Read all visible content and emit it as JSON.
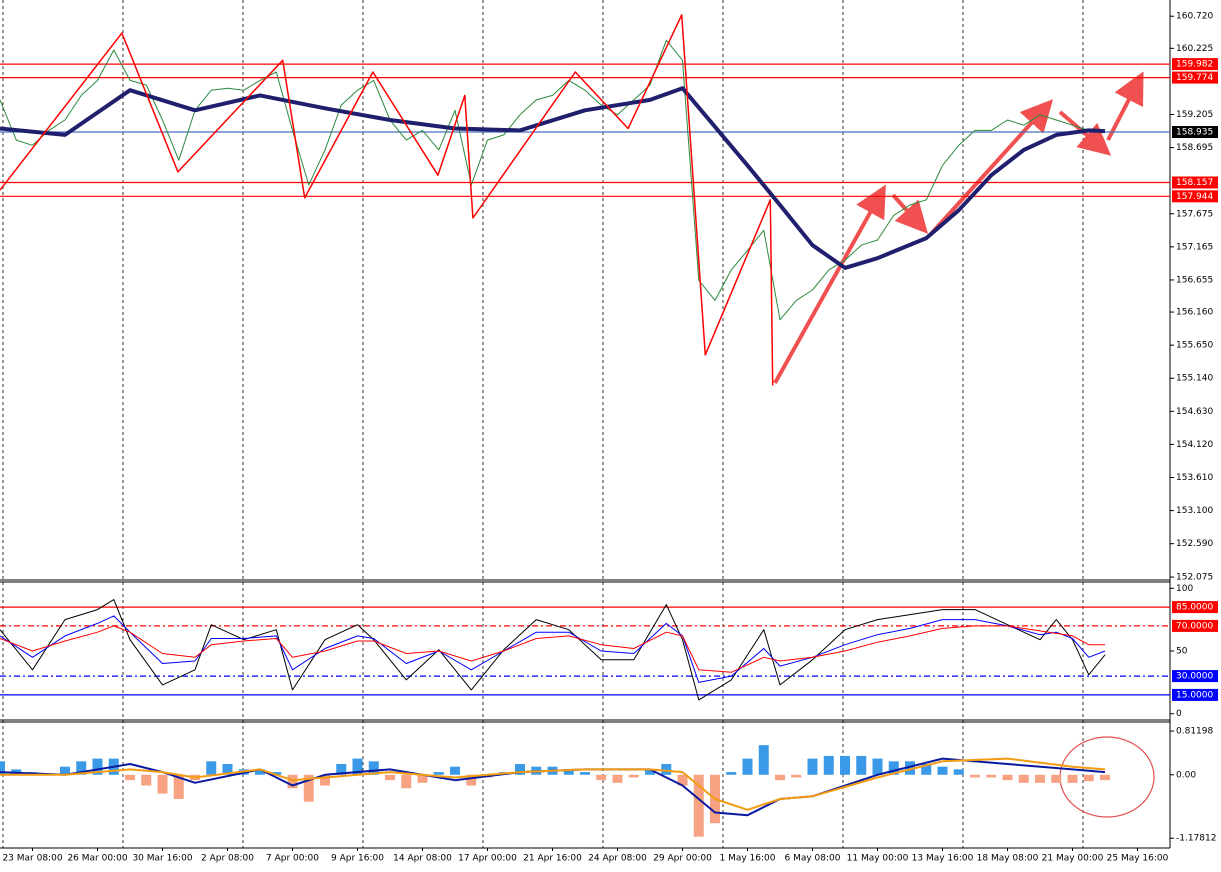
{
  "chart_data": [
    {
      "type": "line",
      "xlim": [
        0,
        144
      ],
      "ylim": [
        152.03,
        160.97
      ],
      "yticks": [
        {
          "value": 160.72,
          "label": "160.720"
        },
        160.225,
        159.205,
        158.695,
        157.675,
        157.165,
        156.655,
        {
          "value": 156.16,
          "label": "156.160"
        },
        {
          "value": 155.65,
          "label": "155.650"
        },
        {
          "value": 155.14,
          "label": "155.140"
        },
        {
          "value": 154.63,
          "label": "154.630"
        },
        {
          "value": 154.12,
          "label": "154.120"
        },
        {
          "value": 153.61,
          "label": "153.610"
        },
        {
          "value": 153.1,
          "label": "153.100"
        },
        {
          "value": 152.59,
          "label": "152.590"
        },
        152.075
      ],
      "levels": [
        {
          "value": 159.982,
          "color": "#ff0000"
        },
        {
          "value": 159.774,
          "color": "#ff0000"
        },
        {
          "value": 158.157,
          "color": "#ff0000"
        },
        {
          "value": 157.944,
          "color": "#ff0000"
        },
        {
          "value": 158.935,
          "color": "#000000",
          "line_color": "#4a6fc0"
        }
      ],
      "series": [
        {
          "color": "#2b8a3e",
          "width": 1,
          "x": [
            0,
            2,
            4,
            6,
            8,
            10,
            12,
            14,
            16,
            18,
            20,
            22,
            24,
            26,
            28,
            30,
            32,
            34,
            36,
            38,
            40,
            42,
            44,
            46,
            48,
            50,
            52,
            54,
            56,
            58,
            60,
            62,
            64,
            66,
            68,
            70,
            72,
            74,
            76,
            78,
            80,
            82,
            84,
            86,
            88,
            90,
            92,
            94,
            96,
            98,
            100,
            102,
            104,
            106,
            108,
            110,
            112,
            114,
            116,
            118,
            120,
            122,
            124,
            126,
            128,
            130,
            132,
            134,
            136
          ],
          "values": [
            159.43,
            158.81,
            158.73,
            158.96,
            159.12,
            159.5,
            159.73,
            160.2,
            159.73,
            159.66,
            159.12,
            158.5,
            159.27,
            159.58,
            159.61,
            159.58,
            159.73,
            159.86,
            158.96,
            158.12,
            158.66,
            159.35,
            159.58,
            159.73,
            159.12,
            158.81,
            158.96,
            158.66,
            159.27,
            158.12,
            158.81,
            158.89,
            159.2,
            159.43,
            159.5,
            159.73,
            159.58,
            159.35,
            159.2,
            159.43,
            159.66,
            160.35,
            160.04,
            156.65,
            156.34,
            156.81,
            157.11,
            157.42,
            156.04,
            156.34,
            156.5,
            156.81,
            156.96,
            157.19,
            157.27,
            157.65,
            157.81,
            157.89,
            158.42,
            158.73,
            158.96,
            158.96,
            159.12,
            159.04,
            159.2,
            159.12,
            159.04,
            158.96,
            158.95
          ]
        },
        {
          "color": "#1f1f6e",
          "width": 4,
          "x": [
            0,
            8,
            16,
            24,
            32,
            40,
            48,
            56,
            64,
            72,
            80,
            84,
            92,
            96,
            100,
            104,
            108,
            114,
            118,
            122,
            126,
            130,
            134,
            136
          ],
          "values": [
            158.99,
            158.89,
            159.58,
            159.27,
            159.5,
            159.3,
            159.12,
            158.99,
            158.96,
            159.27,
            159.43,
            159.61,
            158.42,
            157.81,
            157.19,
            156.84,
            156.99,
            157.3,
            157.73,
            158.27,
            158.66,
            158.89,
            158.96,
            158.95
          ]
        },
        {
          "color": "#ff0000",
          "width": 1.5,
          "x": [
            0,
            15,
            21.9,
            34.8,
            37.5,
            45.9,
            53.9,
            57.2,
            58.2,
            70.8,
            77.3,
            83.9,
            86.8,
            94.8,
            95.1
          ],
          "values": [
            158.04,
            160.46,
            158.32,
            160.04,
            157.92,
            159.86,
            158.27,
            159.5,
            157.61,
            159.86,
            158.99,
            160.74,
            155.5,
            157.89,
            155.03
          ]
        }
      ]
    },
    {
      "type": "line",
      "xlim": [
        0,
        144
      ],
      "ylim": [
        -5,
        105
      ],
      "yticks": [
        100,
        50,
        0
      ],
      "levels": [
        {
          "value": 85,
          "label": "85.0000",
          "color": "#ff0000",
          "dash": "none"
        },
        {
          "value": 70,
          "label": "70.0000",
          "color": "#ff0000",
          "dash": "6 3 2 3"
        },
        {
          "value": 30,
          "label": "30.0000",
          "color": "#0000ff",
          "dash": "6 3 2 3"
        },
        {
          "value": 15,
          "label": "15.0000",
          "color": "#0000ff",
          "dash": "none"
        }
      ],
      "x": [
        0,
        4,
        8,
        12,
        14,
        16,
        20,
        24,
        26,
        30,
        34,
        36,
        40,
        44,
        46,
        50,
        54,
        58,
        62,
        66,
        70,
        74,
        78,
        82,
        84,
        86,
        90,
        94,
        96,
        100,
        104,
        108,
        112,
        116,
        120,
        124,
        128,
        130,
        132,
        134,
        136
      ],
      "series": [
        {
          "color": "#000000",
          "values": [
            67,
            35,
            75,
            83,
            91,
            59,
            23,
            35,
            71,
            59,
            67,
            19,
            59,
            71,
            59,
            27,
            51,
            19,
            51,
            75,
            67,
            43,
            43,
            87,
            59,
            11,
            27,
            67,
            23,
            43,
            67,
            75,
            79,
            83,
            83,
            71,
            59,
            75,
            59,
            31,
            47
          ]
        },
        {
          "color": "#0000ff",
          "values": [
            62,
            45,
            62,
            72,
            78,
            65,
            40,
            42,
            60,
            60,
            62,
            35,
            52,
            62,
            60,
            40,
            50,
            35,
            50,
            65,
            65,
            50,
            48,
            72,
            62,
            25,
            30,
            52,
            38,
            45,
            55,
            63,
            68,
            75,
            75,
            70,
            63,
            65,
            60,
            45,
            50
          ]
        },
        {
          "color": "#ff0000",
          "values": [
            60,
            50,
            58,
            65,
            70,
            65,
            48,
            45,
            55,
            58,
            60,
            45,
            50,
            58,
            58,
            48,
            50,
            42,
            50,
            60,
            62,
            55,
            52,
            65,
            62,
            35,
            33,
            45,
            42,
            45,
            50,
            57,
            62,
            68,
            70,
            70,
            66,
            64,
            62,
            55,
            55
          ]
        }
      ]
    },
    {
      "type": "bar",
      "xlim": [
        0,
        144
      ],
      "ylim": [
        -1.36,
        0.98
      ],
      "yticks": [
        0.81198,
        {
          "value": 0,
          "label": "0.00"
        },
        -1.17812
      ],
      "xticks": [
        {
          "value": 4,
          "label": "23 Mar 08:00"
        },
        {
          "value": 12,
          "label": "26 Mar 00:00"
        },
        {
          "value": 20,
          "label": "30 Mar 16:00"
        },
        {
          "value": 28,
          "label": "2 Apr 08:00"
        },
        {
          "value": 36,
          "label": "7 Apr 00:00"
        },
        {
          "value": 44,
          "label": "9 Apr 16:00"
        },
        {
          "value": 52,
          "label": "14 Apr 08:00"
        },
        {
          "value": 60,
          "label": "17 Apr 00:00"
        },
        {
          "value": 68,
          "label": "21 Apr 16:00"
        },
        {
          "value": 76,
          "label": "24 Apr 08:00"
        },
        {
          "value": 84,
          "label": "29 Apr 00:00"
        },
        {
          "value": 92,
          "label": "1 May 16:00"
        },
        {
          "value": 100,
          "label": "6 May 08:00"
        },
        {
          "value": 108,
          "label": "11 May 00:00"
        },
        {
          "value": 116,
          "label": "13 May 16:00"
        },
        {
          "value": 124,
          "label": "18 May 08:00"
        },
        {
          "value": 132,
          "label": "21 May 00:00"
        },
        {
          "value": 140,
          "label": "25 May 16:00"
        }
      ],
      "series": [
        {
          "type": "bar",
          "up_color": "#3a9ae8",
          "down_color": "#f6a283",
          "x": [
            0,
            2,
            4,
            6,
            8,
            10,
            12,
            14,
            16,
            18,
            20,
            22,
            24,
            26,
            28,
            30,
            32,
            34,
            36,
            38,
            40,
            42,
            44,
            46,
            48,
            50,
            52,
            54,
            56,
            58,
            60,
            62,
            64,
            66,
            68,
            70,
            72,
            74,
            76,
            78,
            80,
            82,
            84,
            86,
            88,
            90,
            92,
            94,
            96,
            98,
            100,
            102,
            104,
            106,
            108,
            110,
            112,
            114,
            116,
            118,
            120,
            122,
            124,
            126,
            128,
            130,
            132,
            134,
            136
          ],
          "values": [
            0.25,
            0.1,
            0.05,
            0.0,
            0.15,
            0.25,
            0.3,
            0.3,
            -0.1,
            -0.2,
            -0.35,
            -0.45,
            -0.1,
            0.25,
            0.2,
            0.1,
            0.1,
            0.05,
            -0.25,
            -0.5,
            -0.2,
            0.2,
            0.3,
            0.25,
            -0.1,
            -0.25,
            -0.15,
            0.05,
            0.15,
            -0.2,
            -0.05,
            0.05,
            0.2,
            0.15,
            0.15,
            0.1,
            0.05,
            -0.1,
            -0.15,
            -0.05,
            0.1,
            0.2,
            -0.2,
            -1.15,
            -0.9,
            0.05,
            0.3,
            0.55,
            -0.1,
            -0.05,
            0.3,
            0.35,
            0.35,
            0.35,
            0.3,
            0.25,
            0.25,
            0.2,
            0.15,
            0.1,
            -0.05,
            -0.05,
            -0.1,
            -0.15,
            -0.15,
            -0.15,
            -0.15,
            -0.12,
            -0.1
          ]
        },
        {
          "type": "line",
          "color": "#0a1aa0",
          "width": 2,
          "x": [
            0,
            8,
            16,
            20,
            24,
            32,
            36,
            40,
            48,
            56,
            64,
            72,
            80,
            84,
            88,
            92,
            96,
            100,
            108,
            116,
            124,
            132,
            136
          ],
          "values": [
            0.05,
            0.0,
            0.2,
            0.05,
            -0.15,
            0.1,
            -0.2,
            0.0,
            0.1,
            -0.1,
            0.05,
            0.1,
            0.1,
            -0.2,
            -0.7,
            -0.75,
            -0.45,
            -0.4,
            0.0,
            0.3,
            0.2,
            0.1,
            0.05
          ]
        },
        {
          "type": "line",
          "color": "#f39c12",
          "width": 2,
          "x": [
            0,
            8,
            16,
            20,
            24,
            32,
            36,
            40,
            48,
            56,
            64,
            72,
            80,
            84,
            88,
            92,
            96,
            100,
            108,
            116,
            124,
            132,
            136
          ],
          "values": [
            0.0,
            0.0,
            0.1,
            0.05,
            -0.05,
            0.1,
            -0.1,
            -0.05,
            0.05,
            -0.05,
            0.05,
            0.1,
            0.1,
            0.05,
            -0.45,
            -0.65,
            -0.45,
            -0.4,
            -0.05,
            0.25,
            0.3,
            0.15,
            0.1
          ]
        }
      ]
    }
  ]
}
